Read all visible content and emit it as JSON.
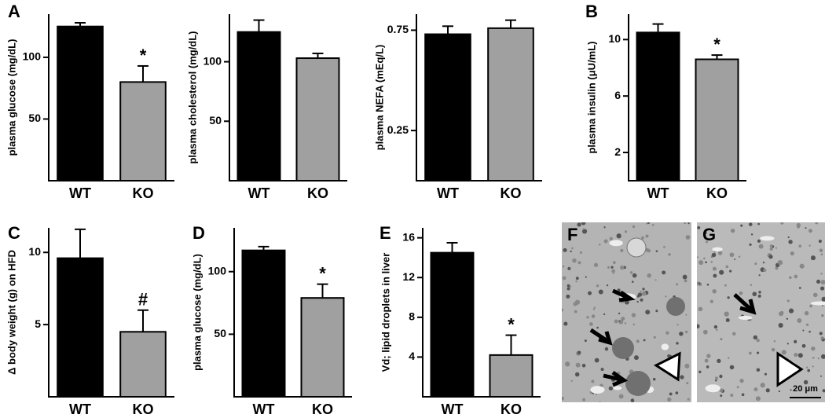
{
  "chart_data": [
    {
      "type": "bar",
      "panel": "A",
      "ylabel": "plasma glucose (mg/dL)",
      "categories": [
        "WT",
        "KO"
      ],
      "values": [
        125,
        80
      ],
      "errors": [
        3,
        13
      ],
      "colors": [
        "#000000",
        "#a0a0a0"
      ],
      "annotation": "*",
      "ylim": [
        0,
        135
      ],
      "yticks": [
        50,
        100
      ]
    },
    {
      "type": "bar",
      "ylabel": "plasma cholesterol (mg/dL)",
      "categories": [
        "WT",
        "KO"
      ],
      "values": [
        125,
        103
      ],
      "errors": [
        10,
        4
      ],
      "colors": [
        "#000000",
        "#a0a0a0"
      ],
      "ylim": [
        0,
        140
      ],
      "yticks": [
        50,
        100
      ]
    },
    {
      "type": "bar",
      "ylabel": "plasma NEFA (mEq/L)",
      "categories": [
        "WT",
        "KO"
      ],
      "values": [
        0.73,
        0.76
      ],
      "errors": [
        0.04,
        0.04
      ],
      "colors": [
        "#000000",
        "#a0a0a0"
      ],
      "ylim": [
        0,
        0.83
      ],
      "yticks": [
        0.25,
        0.75
      ]
    },
    {
      "type": "bar",
      "panel": "B",
      "ylabel": "plasma insulin (μU/mL)",
      "categories": [
        "WT",
        "KO"
      ],
      "values": [
        10.5,
        8.6
      ],
      "errors": [
        0.6,
        0.3
      ],
      "colors": [
        "#000000",
        "#a0a0a0"
      ],
      "annotation": "*",
      "ylim": [
        0,
        11.8
      ],
      "yticks": [
        2,
        6,
        10
      ]
    },
    {
      "type": "bar",
      "panel": "C",
      "ylabel": "Δ body weight (g) on HFD",
      "categories": [
        "WT",
        "KO"
      ],
      "values": [
        9.6,
        4.5
      ],
      "errors": [
        2,
        1.5
      ],
      "colors": [
        "#000000",
        "#a0a0a0"
      ],
      "annotation": "#",
      "ylim": [
        0,
        11.7
      ],
      "yticks": [
        5,
        10
      ]
    },
    {
      "type": "bar",
      "panel": "D",
      "ylabel": "plasma glucose (mg/dL)",
      "categories": [
        "WT",
        "KO"
      ],
      "values": [
        117,
        79
      ],
      "errors": [
        3,
        11
      ],
      "colors": [
        "#000000",
        "#a0a0a0"
      ],
      "annotation": "*",
      "ylim": [
        0,
        135
      ],
      "yticks": [
        50,
        100
      ]
    },
    {
      "type": "bar",
      "panel": "E",
      "ylabel": "Vd; lipid droplets in liver",
      "categories": [
        "WT",
        "KO"
      ],
      "values": [
        14.5,
        4.2
      ],
      "errors": [
        1,
        2
      ],
      "colors": [
        "#000000",
        "#a0a0a0"
      ],
      "annotation": "*",
      "ylim": [
        0,
        17
      ],
      "yticks": [
        4,
        8,
        12,
        16
      ]
    }
  ],
  "images": [
    {
      "label": "F"
    },
    {
      "label": "G",
      "scale_bar": "20 μm"
    }
  ]
}
